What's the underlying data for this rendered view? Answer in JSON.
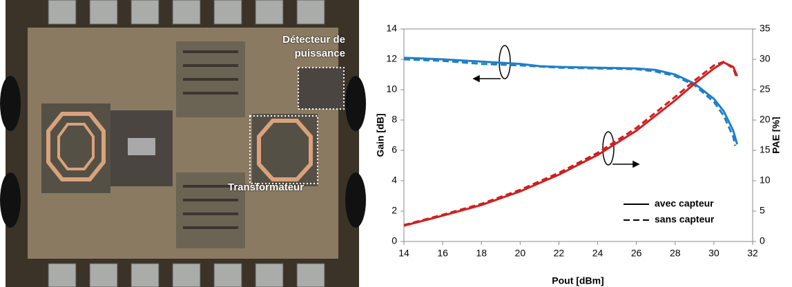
{
  "image_labels": [
    "Détecteur de puissance",
    "Transformateur"
  ],
  "chart_data": {
    "type": "line",
    "xlabel": "Pout [dBm]",
    "ylabel": "Gain [dB]",
    "y2label": "PAE [%]",
    "xlim": [
      14,
      32
    ],
    "xticks": [
      14,
      16,
      18,
      20,
      22,
      24,
      26,
      28,
      30,
      32
    ],
    "ylim": [
      0,
      14
    ],
    "yticks": [
      0,
      2,
      4,
      6,
      8,
      10,
      12,
      14
    ],
    "y2lim": [
      0,
      35
    ],
    "y2ticks": [
      0,
      5,
      10,
      15,
      20,
      25,
      30,
      35
    ],
    "legend": [
      {
        "label": "avec capteur",
        "dash": "solid"
      },
      {
        "label": "sans capteur",
        "dash": "dashed"
      }
    ],
    "series": [
      {
        "color": "#1f7fc8",
        "dash": "solid",
        "axis": "y",
        "x": [
          14,
          16,
          18,
          20,
          21,
          22,
          24,
          26,
          27,
          28,
          29,
          30,
          30.5,
          31,
          31.2
        ],
        "values": [
          12.1,
          12.0,
          11.85,
          11.7,
          11.55,
          11.5,
          11.45,
          11.4,
          11.3,
          11.0,
          10.4,
          9.4,
          8.6,
          7.3,
          6.4
        ]
      },
      {
        "color": "#1f7fc8",
        "dash": "dashed",
        "axis": "y",
        "x": [
          14,
          16,
          18,
          20,
          22,
          24,
          26,
          27,
          28,
          29,
          30,
          30.5,
          31,
          31.1
        ],
        "values": [
          12.0,
          11.9,
          11.7,
          11.6,
          11.45,
          11.4,
          11.35,
          11.2,
          10.9,
          10.3,
          9.2,
          8.3,
          6.9,
          6.3
        ]
      },
      {
        "color": "#d01f1f",
        "dash": "solid",
        "axis": "y2",
        "x": [
          14,
          16,
          18,
          20,
          22,
          24,
          26,
          28,
          29,
          30,
          30.5,
          31,
          31.2
        ],
        "values": [
          2.6,
          4.25,
          6,
          8.25,
          11,
          14.25,
          18.25,
          23.25,
          26,
          28.5,
          29.5,
          28.75,
          27.25
        ]
      },
      {
        "color": "#d01f1f",
        "dash": "dashed",
        "axis": "y2",
        "x": [
          14,
          16,
          18,
          20,
          22,
          24,
          26,
          28,
          29,
          30,
          30.5,
          31,
          31.2
        ],
        "values": [
          2.7,
          4.4,
          6.2,
          8.5,
          11.3,
          14.6,
          18.7,
          23.8,
          26.5,
          29,
          29.6,
          28.5,
          26.8
        ]
      }
    ]
  }
}
